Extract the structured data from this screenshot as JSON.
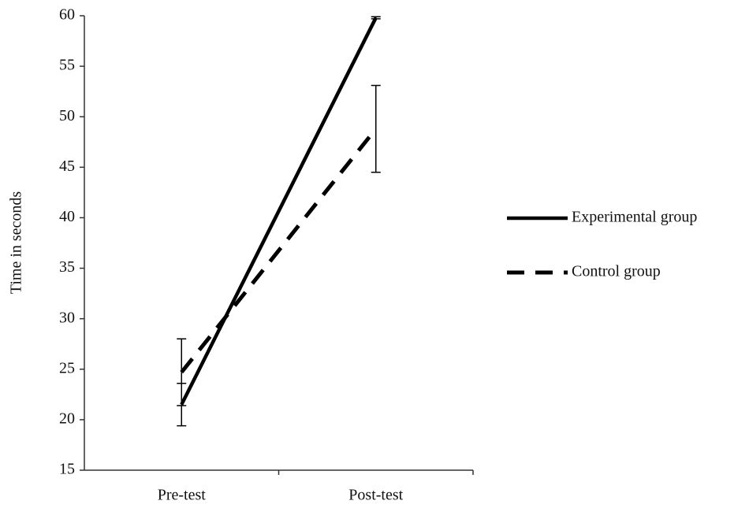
{
  "chart_data": {
    "type": "line",
    "y_label": "Time in seconds",
    "categories": [
      "Pre-test",
      "Post-test"
    ],
    "series": [
      {
        "name": "Experimental group",
        "color": "#000000",
        "dash": false,
        "values": [
          21.5,
          59.8
        ],
        "errors": [
          2.1,
          0.1
        ]
      },
      {
        "name": "Control group",
        "color": "#000000",
        "dash": true,
        "values": [
          24.7,
          48.8
        ],
        "errors": [
          3.3,
          4.3
        ]
      }
    ],
    "ylim": [
      15,
      60
    ],
    "yticks": [
      15,
      20,
      25,
      30,
      35,
      40,
      45,
      50,
      55,
      60
    ],
    "grid": false
  }
}
